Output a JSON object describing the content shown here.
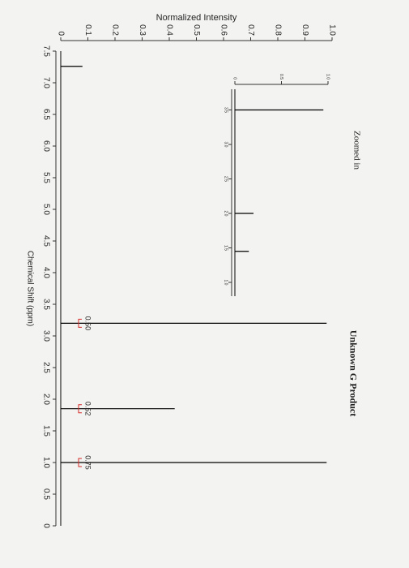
{
  "chart_data": [
    {
      "type": "stem",
      "title": "Unknown G Product",
      "xlabel": "Chemical Shift (ppm)",
      "ylabel": "Normalized Intensity",
      "x": [
        7.26,
        3.2,
        1.85,
        1.0
      ],
      "values": [
        0.08,
        0.98,
        0.42,
        0.98
      ],
      "color": "#000000",
      "xlim": [
        7.5,
        0
      ],
      "xticks": [
        7.5,
        {
          "value": 7,
          "label": "7.0"
        },
        6.5,
        {
          "value": 6,
          "label": "6.0"
        },
        5.5,
        {
          "value": 5,
          "label": "5.0"
        },
        4.5,
        {
          "value": 4,
          "label": "4.0"
        },
        3.5,
        {
          "value": 3,
          "label": "3.0"
        },
        2.5,
        {
          "value": 2,
          "label": "2.0"
        },
        1.5,
        {
          "value": 1,
          "label": "1.0"
        },
        0.5,
        0
      ],
      "ylim": [
        0,
        1
      ],
      "yticks": [
        0,
        0.1,
        0.2,
        0.3,
        0.4,
        0.5,
        0.6,
        0.7,
        0.8,
        0.9,
        {
          "value": 1,
          "label": "1.0"
        }
      ],
      "integrations": [
        {
          "x": 3.2,
          "value": 0.5,
          "label": "0.50"
        },
        {
          "x": 1.85,
          "value": 0.52,
          "label": "0.52"
        },
        {
          "x": 1.0,
          "value": 0.75,
          "label": "0.75"
        }
      ],
      "integration_color": "#d62828"
    },
    {
      "type": "stem",
      "title": "Zoomed in",
      "x": [
        3.5,
        2.0,
        1.45
      ],
      "values": [
        0.95,
        0.2,
        0.15
      ],
      "color": "#000000",
      "xlim": [
        3.8,
        0.8
      ],
      "xticks": [
        3.5,
        {
          "value": 3,
          "label": "3.0"
        },
        2.5,
        {
          "value": 2,
          "label": "2.0"
        },
        1.5,
        {
          "value": 1,
          "label": "1.0"
        }
      ],
      "ylim": [
        0,
        1
      ],
      "yticks": [
        0,
        0.5,
        {
          "value": 1,
          "label": "1.0"
        }
      ]
    }
  ]
}
